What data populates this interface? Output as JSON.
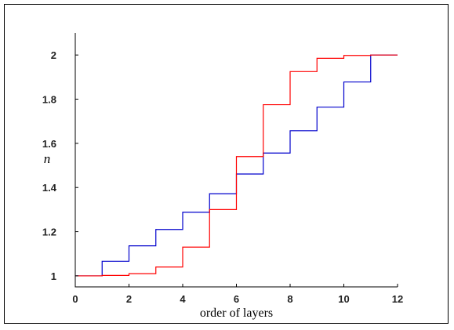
{
  "chart_data": {
    "type": "line",
    "step": true,
    "title": "",
    "xlabel": "order of layers",
    "ylabel": "n",
    "xlim": [
      0,
      12
    ],
    "ylim": [
      0.95,
      2.1
    ],
    "xticks": [
      "0",
      "2",
      "4",
      "6",
      "8",
      "10",
      "12"
    ],
    "yticks": [
      "1",
      "1.2",
      "1.4",
      "1.6",
      "1.8",
      "2"
    ],
    "grid": false,
    "series": [
      {
        "color": "#0000cc",
        "x": [
          0,
          1,
          2,
          3,
          4,
          5,
          6,
          7,
          8,
          9,
          10,
          11,
          12
        ],
        "values": [
          1.0,
          1.066,
          1.136,
          1.21,
          1.288,
          1.372,
          1.461,
          1.556,
          1.657,
          1.764,
          1.878,
          2.0,
          2.0
        ]
      },
      {
        "color": "#ff0000",
        "x": [
          0,
          1,
          2,
          3,
          4,
          5,
          6,
          7,
          8,
          9,
          10,
          11,
          12
        ],
        "values": [
          1.0,
          1.002,
          1.01,
          1.04,
          1.13,
          1.3,
          1.54,
          1.775,
          1.925,
          1.985,
          1.998,
          2.0,
          2.0
        ]
      }
    ]
  }
}
